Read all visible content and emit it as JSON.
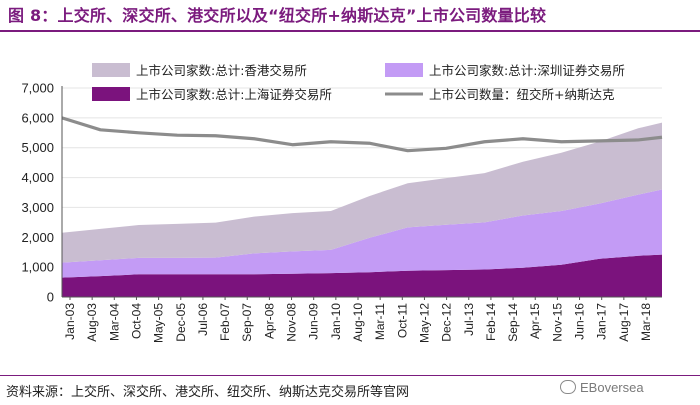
{
  "title": "图 8：上交所、深交所、港交所以及“纽交所+纳斯达克”上市公司数量比较",
  "source": "资料来源：上交所、深交所、港交所、纽交所、纳斯达克交易所等官网",
  "watermark": "EBoversea",
  "colors": {
    "title": "#7b1b7e",
    "hk": "#c9bdd1",
    "sz": "#c39bf5",
    "sh": "#7b137d",
    "us": "#8c8c8c"
  },
  "chart_data": {
    "type": "area",
    "stacked": true,
    "ylim": [
      0,
      7000
    ],
    "y_ticks": [
      "0",
      "1,000",
      "2,000",
      "3,000",
      "4,000",
      "5,000",
      "6,000",
      "7,000"
    ],
    "y_tick_values": [
      0,
      1000,
      2000,
      3000,
      4000,
      5000,
      6000,
      7000
    ],
    "x_range": [
      "Jan-03",
      "Aug-18"
    ],
    "x_ticks": [
      "Jan-03",
      "Aug-03",
      "Mar-04",
      "Oct-04",
      "May-05",
      "Dec-05",
      "Jul-06",
      "Feb-07",
      "Sep-07",
      "Apr-08",
      "Nov-08",
      "Jun-09",
      "Jan-10",
      "Aug-10",
      "Mar-11",
      "Oct-11",
      "May-12",
      "Dec-12",
      "Jul-13",
      "Feb-14",
      "Sep-14",
      "Apr-15",
      "Nov-15",
      "Jun-16",
      "Jan-17",
      "Aug-17",
      "Mar-18"
    ],
    "x_years": [
      2003.0,
      2004.0,
      2005.0,
      2006.0,
      2007.0,
      2008.0,
      2009.0,
      2010.0,
      2011.0,
      2012.0,
      2013.0,
      2014.0,
      2015.0,
      2016.0,
      2017.0,
      2018.0,
      2018.62
    ],
    "series": [
      {
        "name": "上市公司家数:总计:上海证券交易所",
        "key": "sh",
        "kind": "area",
        "values": [
          650,
          700,
          760,
          760,
          760,
          760,
          780,
          800,
          830,
          880,
          900,
          920,
          980,
          1080,
          1280,
          1380,
          1420
        ]
      },
      {
        "name": "上市公司家数:总计:深圳证券交易所",
        "key": "sz",
        "kind": "area",
        "values": [
          500,
          530,
          550,
          550,
          560,
          700,
          750,
          780,
          1150,
          1450,
          1520,
          1580,
          1750,
          1800,
          1850,
          2050,
          2180
        ]
      },
      {
        "name": "上市公司家数:总计:香港交易所",
        "key": "hk",
        "kind": "area",
        "values": [
          1000,
          1050,
          1100,
          1140,
          1170,
          1230,
          1280,
          1300,
          1400,
          1480,
          1560,
          1650,
          1800,
          1950,
          2080,
          2220,
          2240
        ]
      },
      {
        "name": "上市公司数量：纽交所+纳斯达克",
        "key": "us",
        "kind": "line",
        "values": [
          6000,
          5600,
          5500,
          5420,
          5400,
          5300,
          5100,
          5200,
          5150,
          4900,
          4980,
          5200,
          5300,
          5200,
          5230,
          5260,
          5350
        ]
      }
    ],
    "legend": [
      {
        "label": "上市公司家数:总计:香港交易所",
        "key": "hk"
      },
      {
        "label": "上市公司家数:总计:深圳证券交易所",
        "key": "sz"
      },
      {
        "label": "上市公司家数:总计:上海证券交易所",
        "key": "sh"
      },
      {
        "label": "上市公司数量：纽交所+纳斯达克",
        "key": "us"
      }
    ],
    "legend_position": "top"
  }
}
